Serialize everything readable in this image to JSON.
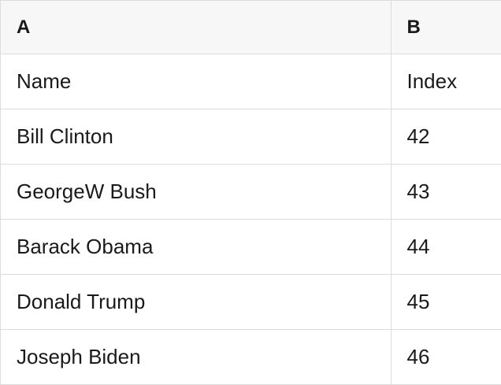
{
  "table": {
    "column_headers": [
      "A",
      "B"
    ],
    "rows": [
      [
        "Name",
        "Index"
      ],
      [
        "Bill Clinton",
        "42"
      ],
      [
        "GeorgeW Bush",
        "43"
      ],
      [
        "Barack Obama",
        "44"
      ],
      [
        "Donald Trump",
        "45"
      ],
      [
        "Joseph Biden",
        "46"
      ]
    ]
  },
  "colors": {
    "header_background": "#f7f7f7",
    "cell_background": "#ffffff",
    "border": "#dcdcdc",
    "text": "#1a1a1a"
  }
}
